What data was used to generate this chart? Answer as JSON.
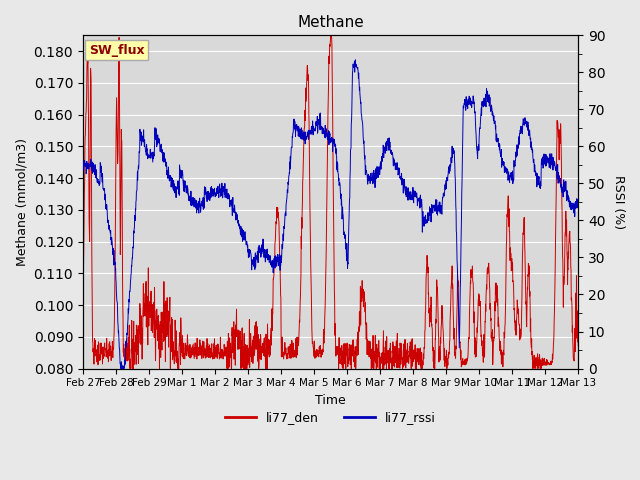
{
  "title": "Methane",
  "xlabel": "Time",
  "ylabel_left": "Methane (mmol/m3)",
  "ylabel_right": "RSSI (%)",
  "ylim_left": [
    0.08,
    0.185
  ],
  "ylim_right": [
    0,
    90
  ],
  "yticks_left": [
    0.08,
    0.09,
    0.1,
    0.11,
    0.12,
    0.13,
    0.14,
    0.15,
    0.16,
    0.17,
    0.18
  ],
  "yticks_right": [
    0,
    10,
    20,
    30,
    40,
    50,
    60,
    70,
    80,
    90
  ],
  "fig_bg_color": "#e8e8e8",
  "plot_bg_color": "#d9d9d9",
  "grid_color": "#ffffff",
  "line_color_red": "#cc0000",
  "line_color_blue": "#0000bb",
  "annotation_text": "SW_flux",
  "annotation_color": "#8B0000",
  "annotation_bg": "#ffffaa",
  "annotation_border": "#aaaaaa",
  "legend_red": "li77_den",
  "legend_blue": "li77_rssi",
  "xticklabels": [
    "Feb 27",
    "Feb 28",
    "Feb 29",
    "Mar 1",
    "Mar 2",
    "Mar 3",
    "Mar 4",
    "Mar 5",
    "Mar 6",
    "Mar 7",
    "Mar 8",
    "Mar 9",
    "Mar 10",
    "Mar 11",
    "Mar 12",
    "Mar 13"
  ],
  "n_points": 2000
}
